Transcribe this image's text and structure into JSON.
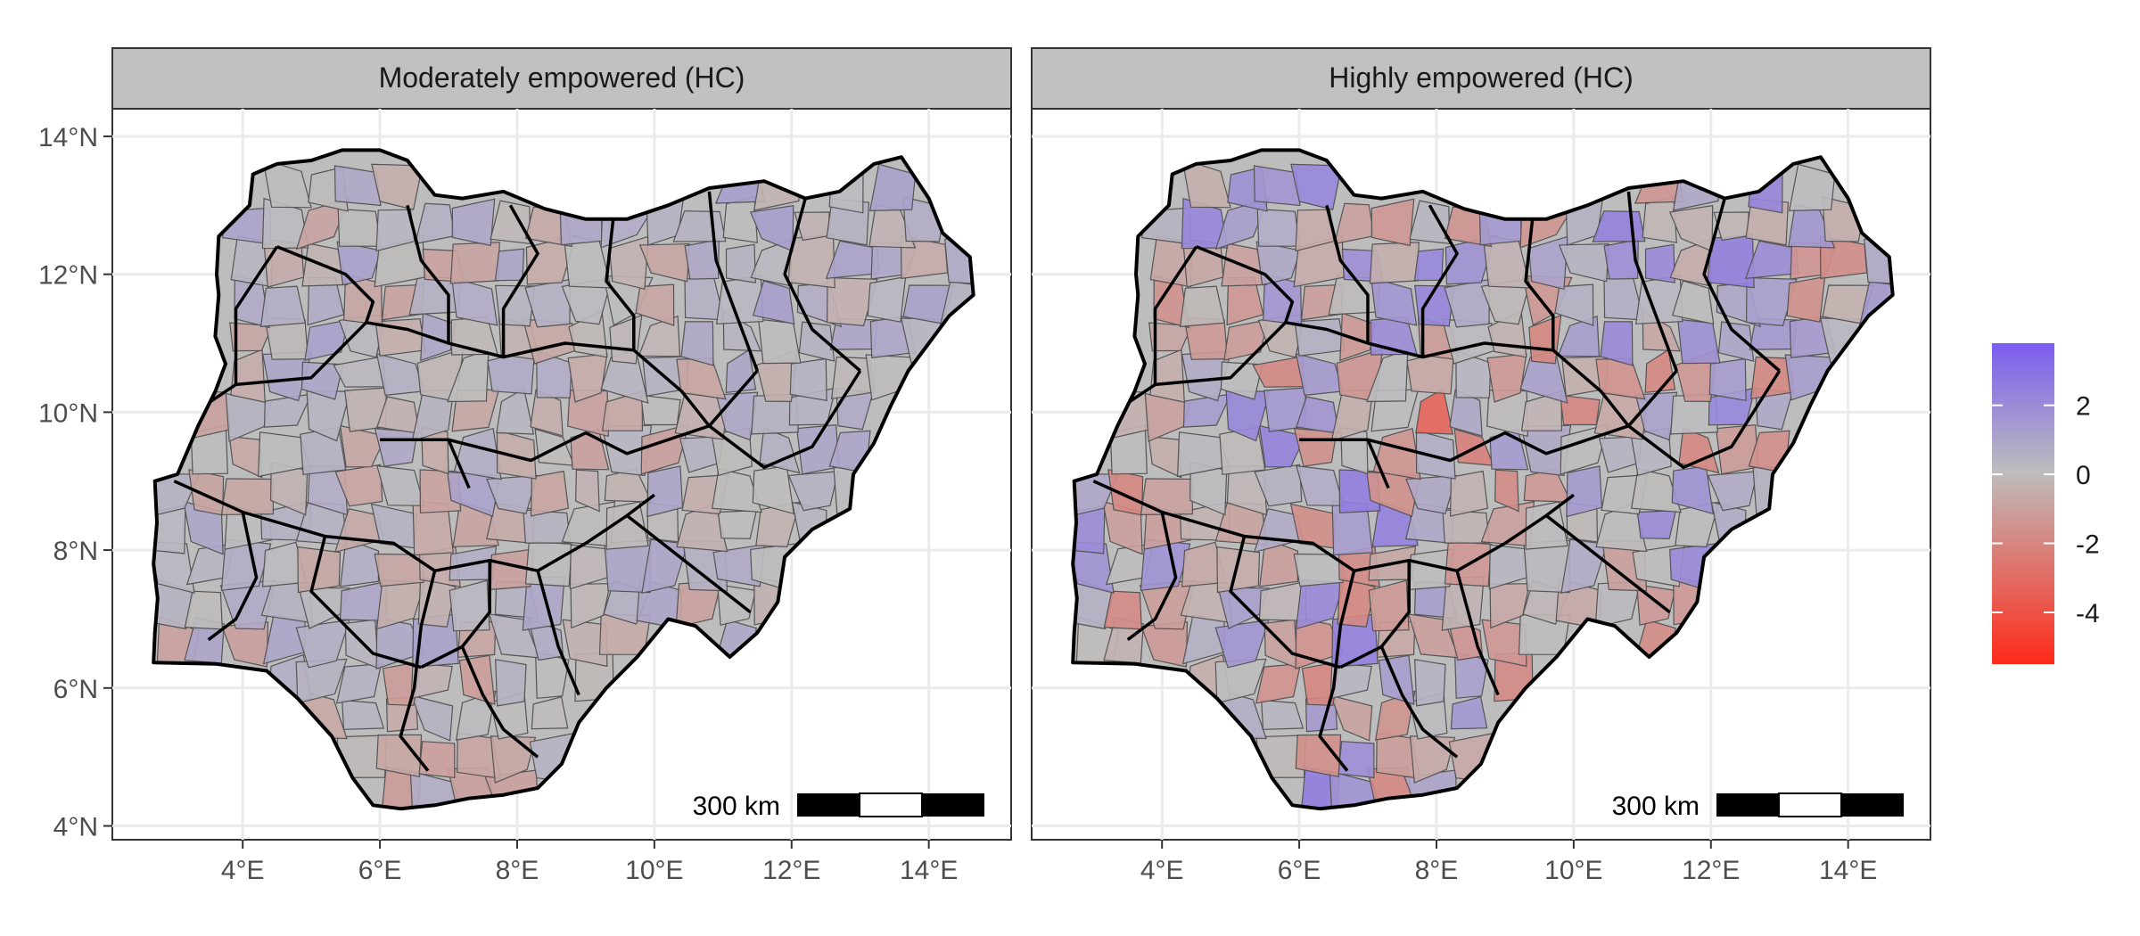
{
  "panels": [
    {
      "title": "Moderately empowered (HC)",
      "variant": "moderate"
    },
    {
      "title": "Highly empowered (HC)",
      "variant": "high"
    }
  ],
  "axes": {
    "x_ticks": [
      "4°E",
      "6°E",
      "8°E",
      "10°E",
      "12°E",
      "14°E"
    ],
    "x_values": [
      4,
      6,
      8,
      10,
      12,
      14
    ],
    "y_ticks": [
      "14°N",
      "12°N",
      "10°N",
      "8°N",
      "6°N",
      "4°N"
    ],
    "y_values": [
      14,
      12,
      10,
      8,
      6,
      4
    ],
    "lon_range": [
      2.1,
      15.2
    ],
    "lat_range": [
      3.8,
      14.4
    ]
  },
  "scale_bar": {
    "label": "300 km"
  },
  "legend": {
    "ticks": [
      "2",
      "0",
      "-2",
      "-4"
    ],
    "values": [
      2,
      0,
      -2,
      -4
    ],
    "range": [
      -5.5,
      3.8
    ],
    "colors": {
      "high": "#7b5cf0",
      "mid": "#bdbdbd",
      "low": "#ff2a1a"
    }
  },
  "colors": {
    "strip": "#c1c1c1",
    "grid": "#ebebeb",
    "district_stroke": "#555555",
    "state_stroke": "#000000"
  }
}
